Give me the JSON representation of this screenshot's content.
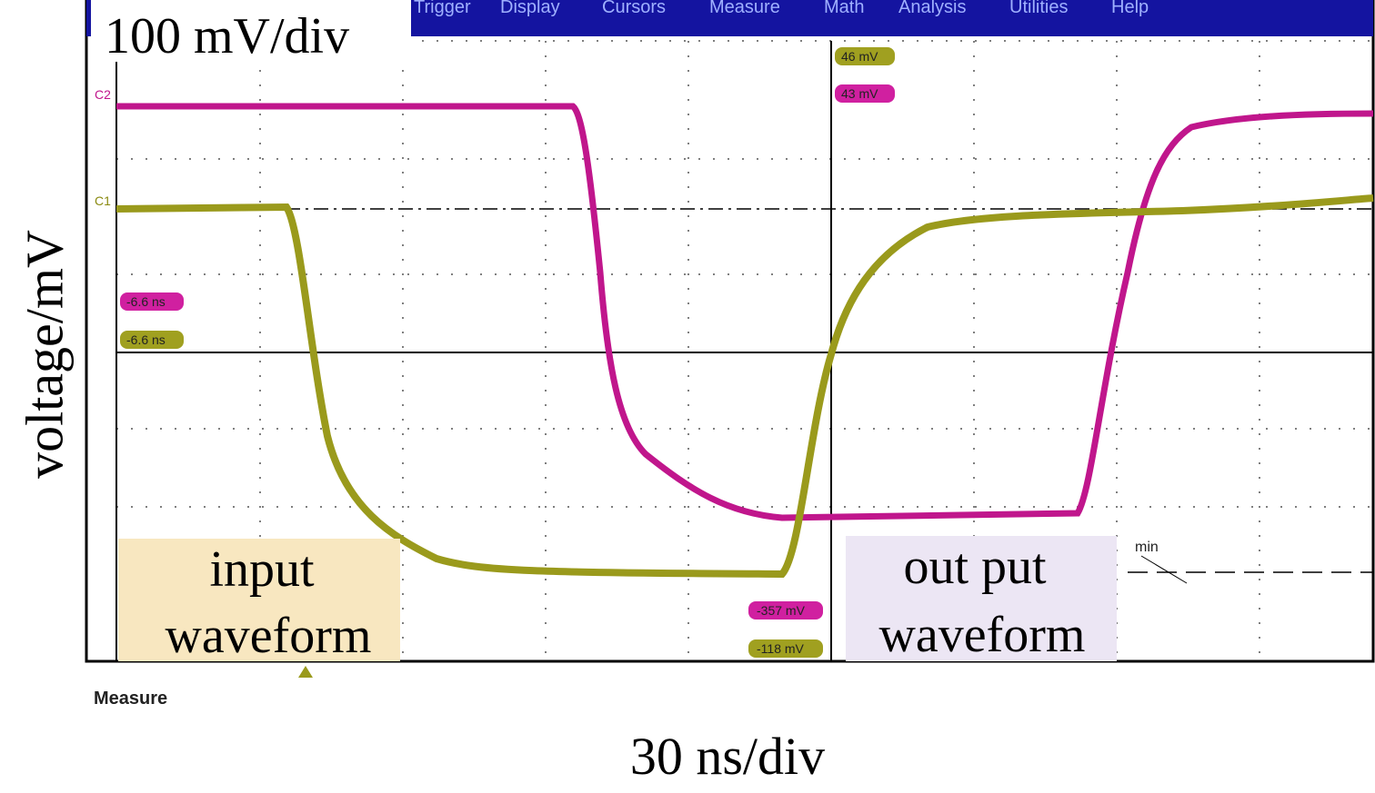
{
  "annotations": {
    "vertical_scale": "100 mV/div",
    "horizontal_scale": "30 ns/div",
    "y_axis_label": "voltage/mV",
    "input_label": [
      "input",
      "waveform"
    ],
    "output_label": [
      "out put",
      "waveform"
    ]
  },
  "menu": [
    "Trigger",
    "Display",
    "Cursors",
    "Measure",
    "Math",
    "Analysis",
    "Utilities",
    "Help"
  ],
  "scope": {
    "channel_labels": [
      "C2",
      "C1"
    ],
    "readouts": [
      "46 mV",
      "43 mV",
      "-6.6 ns",
      "-6.6 ns",
      "-357 mV",
      "-118 mV"
    ],
    "min_label": "min",
    "footer": "Measure"
  }
}
